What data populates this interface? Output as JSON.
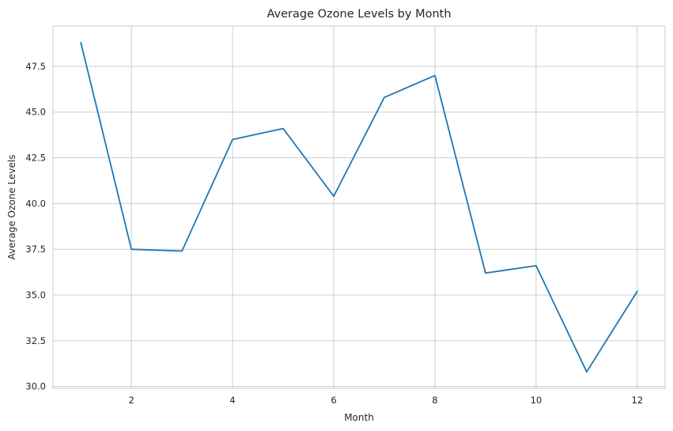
{
  "chart_data": {
    "type": "line",
    "title": "Average Ozone Levels by Month",
    "xlabel": "Month",
    "ylabel": "Average Ozone Levels",
    "x": [
      1,
      2,
      3,
      4,
      5,
      6,
      7,
      8,
      9,
      10,
      11,
      12
    ],
    "series": [
      {
        "values": [
          48.8,
          37.5,
          37.4,
          43.5,
          44.1,
          40.4,
          45.8,
          47.0,
          36.2,
          36.6,
          30.8,
          35.2
        ],
        "color": "#1f77b4"
      }
    ],
    "xlim": [
      0.45,
      12.55
    ],
    "ylim": [
      29.9,
      49.7
    ],
    "xticks": [
      2,
      4,
      6,
      8,
      10,
      12
    ],
    "xtick_labels": [
      "2",
      "4",
      "6",
      "8",
      "10",
      "12"
    ],
    "yticks": [
      30.0,
      32.5,
      35.0,
      37.5,
      40.0,
      42.5,
      45.0,
      47.5
    ],
    "ytick_labels": [
      "30.0",
      "32.5",
      "35.0",
      "37.5",
      "40.0",
      "42.5",
      "45.0",
      "47.5"
    ],
    "grid": true,
    "legend": "none"
  }
}
